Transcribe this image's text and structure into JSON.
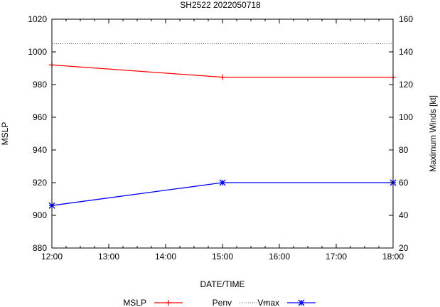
{
  "chart_data": {
    "type": "line",
    "title": "SH2522 2022050718",
    "xlabel": "DATE/TIME",
    "ylabel": "MSLP",
    "y2label": "Maximum Winds [kt]",
    "x_hours": [
      12,
      15,
      18
    ],
    "xlim": [
      12,
      18
    ],
    "xticks": [
      "12:00",
      "13:00",
      "14:00",
      "15:00",
      "16:00",
      "17:00",
      "18:00"
    ],
    "ylim": [
      880,
      1020
    ],
    "yticks": [
      "880",
      "900",
      "920",
      "940",
      "960",
      "980",
      "1000",
      "1020"
    ],
    "y2lim": [
      20,
      160
    ],
    "y2ticks": [
      "20",
      "40",
      "60",
      "80",
      "100",
      "120",
      "140",
      "160"
    ],
    "series": [
      {
        "name": "MSLP",
        "axis": "y",
        "color": "#ff0000",
        "marker": "+",
        "x": [
          12,
          15,
          18
        ],
        "values": [
          992,
          984.5,
          984.5
        ]
      },
      {
        "name": "Penv",
        "axis": "y",
        "color": "#555555",
        "style": "dotted",
        "x": [
          12,
          18
        ],
        "values": [
          1005,
          1005
        ]
      },
      {
        "name": "Vmax",
        "axis": "y2",
        "color": "#0000ff",
        "marker": "x",
        "x": [
          12,
          15,
          18
        ],
        "values": [
          46,
          60,
          60
        ]
      }
    ],
    "legend": {
      "position": "bottom"
    }
  }
}
